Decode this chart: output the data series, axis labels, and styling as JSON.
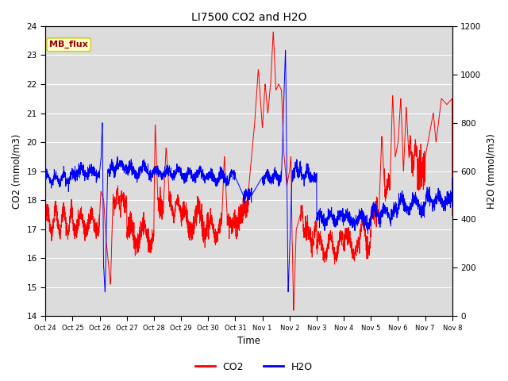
{
  "title": "LI7500 CO2 and H2O",
  "xlabel": "Time",
  "ylabel_left": "CO2 (mmol/m3)",
  "ylabel_right": "H2O (mmol/m3)",
  "ylim_left": [
    14.0,
    24.0
  ],
  "ylim_right": [
    0,
    1200
  ],
  "yticks_left": [
    14.0,
    15.0,
    16.0,
    17.0,
    18.0,
    19.0,
    20.0,
    21.0,
    22.0,
    23.0,
    24.0
  ],
  "yticks_right": [
    0,
    200,
    400,
    600,
    800,
    1000,
    1200
  ],
  "xtick_labels": [
    "Oct 24",
    "Oct 25",
    "Oct 26",
    "Oct 27",
    "Oct 28",
    "Oct 29",
    "Oct 30",
    "Oct 31",
    "Nov 1",
    "Nov 2",
    "Nov 3",
    "Nov 4",
    "Nov 5",
    "Nov 6",
    "Nov 7",
    "Nov 8"
  ],
  "co2_color": "#FF0000",
  "h2o_color": "#0000FF",
  "background_color": "#DCDCDC",
  "grid_color": "#FFFFFF",
  "annotation_text": "MB_flux",
  "annotation_bg": "#FFFFCC",
  "annotation_border": "#CCCC00",
  "annotation_text_color": "#990000",
  "legend_co2": "CO2",
  "legend_h2o": "H2O",
  "num_points": 3000,
  "seed": 42
}
